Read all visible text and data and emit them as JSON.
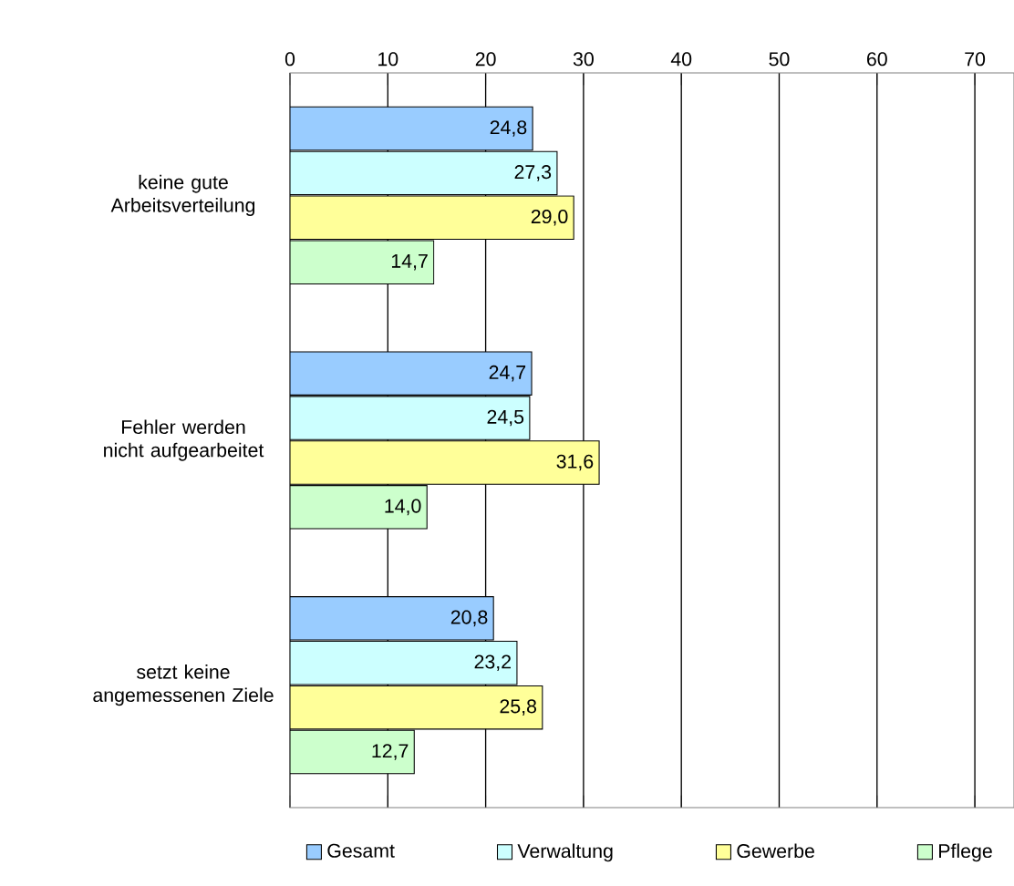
{
  "chart_data": {
    "type": "bar",
    "orientation": "horizontal",
    "categories": [
      "keine gute Arbeitsverteilung",
      "Fehler werden nicht aufgearbeitet",
      "setzt keine angemessenen Ziele"
    ],
    "series": [
      {
        "name": "Gesamt",
        "color": "#99ccff",
        "values": [
          24.8,
          24.7,
          20.8
        ],
        "value_labels": [
          "24,8",
          "24,7",
          "20,8"
        ]
      },
      {
        "name": "Verwaltung",
        "color": "#ccffff",
        "values": [
          27.3,
          24.5,
          23.2
        ],
        "value_labels": [
          "27,3",
          "24,5",
          "23,2"
        ]
      },
      {
        "name": "Gewerbe",
        "color": "#ffff99",
        "values": [
          29.0,
          31.6,
          25.8
        ],
        "value_labels": [
          "29,0",
          "31,6",
          "25,8"
        ]
      },
      {
        "name": "Pflege",
        "color": "#ccffcc",
        "values": [
          14.7,
          14.0,
          12.7
        ],
        "value_labels": [
          "14,7",
          "14,0",
          "12,7"
        ]
      }
    ],
    "xlim": [
      0,
      74
    ],
    "xticks": [
      0,
      10,
      20,
      30,
      40,
      50,
      60,
      70
    ],
    "grid": "x",
    "legend": "bottom"
  }
}
